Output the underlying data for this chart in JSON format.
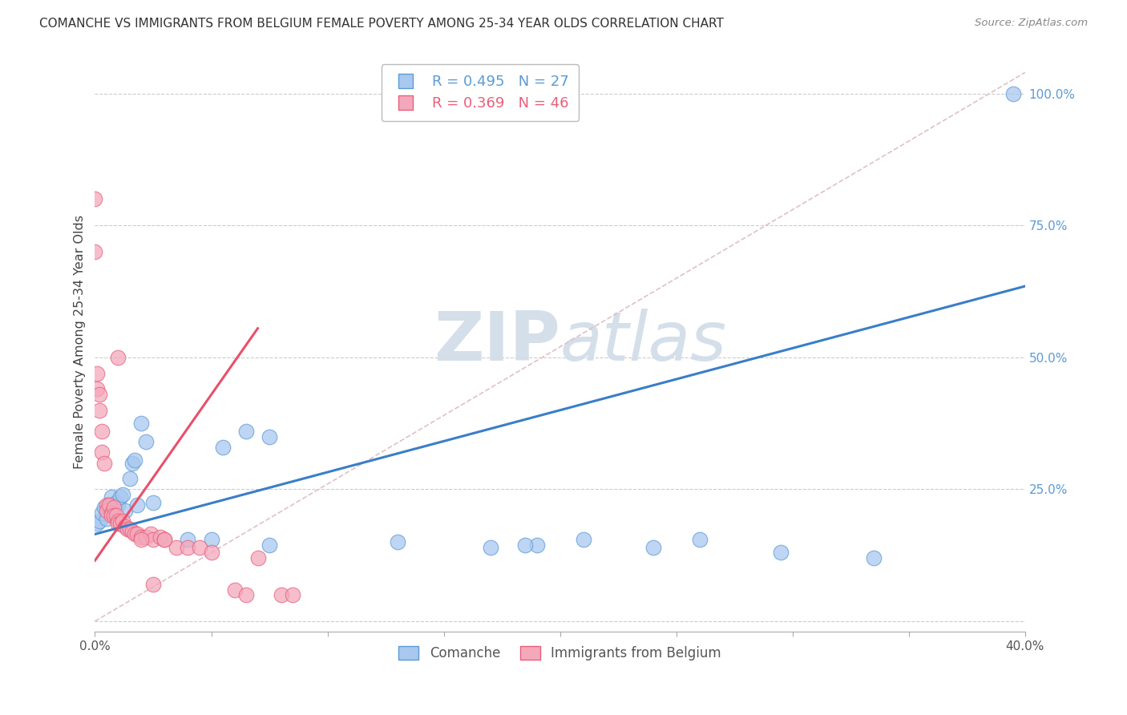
{
  "title": "COMANCHE VS IMMIGRANTS FROM BELGIUM FEMALE POVERTY AMONG 25-34 YEAR OLDS CORRELATION CHART",
  "source": "Source: ZipAtlas.com",
  "ylabel": "Female Poverty Among 25-34 Year Olds",
  "ytick_labels": [
    "",
    "25.0%",
    "50.0%",
    "75.0%",
    "100.0%"
  ],
  "ytick_values": [
    0,
    0.25,
    0.5,
    0.75,
    1.0
  ],
  "xlim": [
    0,
    0.4
  ],
  "ylim": [
    -0.02,
    1.08
  ],
  "legend_label_blue": "Comanche",
  "legend_label_pink": "Immigrants from Belgium",
  "blue_color": "#A8C8F0",
  "pink_color": "#F4A8BB",
  "blue_edge_color": "#5B9BD5",
  "pink_edge_color": "#E8607A",
  "blue_line_color": "#3A7EC8",
  "pink_line_color": "#E8506A",
  "ref_line_color": "#E0C0C8",
  "watermark_color": "#D0DCE8",
  "blue_scatter_x": [
    0.001,
    0.002,
    0.003,
    0.004,
    0.005,
    0.006,
    0.007,
    0.008,
    0.009,
    0.01,
    0.011,
    0.012,
    0.013,
    0.015,
    0.016,
    0.017,
    0.018,
    0.02,
    0.022,
    0.025,
    0.04,
    0.05,
    0.055,
    0.065,
    0.075,
    0.13,
    0.19
  ],
  "blue_scatter_y": [
    0.185,
    0.19,
    0.205,
    0.215,
    0.195,
    0.22,
    0.235,
    0.215,
    0.225,
    0.22,
    0.235,
    0.24,
    0.21,
    0.27,
    0.3,
    0.305,
    0.22,
    0.375,
    0.34,
    0.225,
    0.155,
    0.155,
    0.33,
    0.36,
    0.35,
    0.15,
    0.145
  ],
  "blue_scatter_x2": [
    0.075,
    0.17,
    0.185,
    0.21,
    0.24,
    0.26,
    0.295,
    0.335,
    0.395
  ],
  "blue_scatter_y2": [
    0.145,
    0.14,
    0.145,
    0.155,
    0.14,
    0.155,
    0.13,
    0.12,
    1.0
  ],
  "pink_scatter_x": [
    0.0,
    0.0,
    0.001,
    0.001,
    0.002,
    0.002,
    0.003,
    0.003,
    0.004,
    0.005,
    0.005,
    0.006,
    0.007,
    0.007,
    0.008,
    0.008,
    0.009,
    0.01,
    0.01,
    0.011,
    0.012,
    0.013,
    0.014,
    0.015,
    0.016,
    0.017,
    0.018,
    0.02,
    0.022,
    0.024,
    0.025,
    0.028,
    0.03,
    0.035,
    0.04,
    0.045,
    0.05,
    0.06,
    0.065,
    0.07,
    0.08,
    0.085,
    0.01,
    0.02,
    0.025,
    0.03
  ],
  "pink_scatter_y": [
    0.8,
    0.7,
    0.47,
    0.44,
    0.43,
    0.4,
    0.36,
    0.32,
    0.3,
    0.22,
    0.21,
    0.22,
    0.205,
    0.2,
    0.215,
    0.2,
    0.2,
    0.19,
    0.185,
    0.185,
    0.19,
    0.18,
    0.175,
    0.175,
    0.17,
    0.165,
    0.165,
    0.16,
    0.16,
    0.165,
    0.155,
    0.16,
    0.155,
    0.14,
    0.14,
    0.14,
    0.13,
    0.06,
    0.05,
    0.12,
    0.05,
    0.05,
    0.5,
    0.155,
    0.07,
    0.155
  ],
  "blue_line_x": [
    0.0,
    0.4
  ],
  "blue_line_y": [
    0.165,
    0.635
  ],
  "pink_line_x": [
    0.0,
    0.07
  ],
  "pink_line_y": [
    0.115,
    0.555
  ],
  "ref_line_x": [
    0.0,
    0.4
  ],
  "ref_line_y": [
    0.0,
    1.04
  ]
}
